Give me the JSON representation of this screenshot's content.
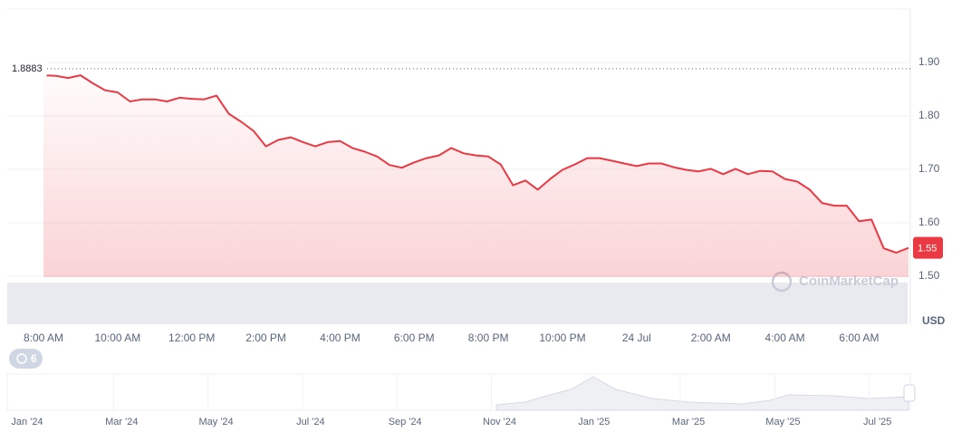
{
  "chart_data": {
    "type": "line",
    "categories": [
      "8:00 AM",
      null,
      null,
      null,
      null,
      null,
      "10:00 AM",
      null,
      null,
      null,
      null,
      null,
      "12:00 PM",
      null,
      null,
      null,
      null,
      null,
      "2:00 PM",
      null,
      null,
      null,
      null,
      null,
      "4:00 PM",
      null,
      null,
      null,
      null,
      null,
      "6:00 PM",
      null,
      null,
      null,
      null,
      null,
      "8:00 PM",
      null,
      null,
      null,
      null,
      null,
      "10:00 PM",
      null,
      null,
      null,
      null,
      null,
      "24 Jul",
      null,
      null,
      null,
      null,
      null,
      "2:00 AM",
      null,
      null,
      null,
      null,
      null,
      "4:00 AM",
      null,
      null,
      null,
      null,
      null,
      "6:00 AM",
      null,
      null,
      null,
      null
    ],
    "values": [
      1.876,
      1.875,
      1.871,
      1.876,
      1.861,
      1.848,
      1.844,
      1.827,
      1.831,
      1.831,
      1.827,
      1.834,
      1.832,
      1.831,
      1.838,
      1.804,
      1.789,
      1.772,
      1.743,
      1.755,
      1.76,
      1.751,
      1.743,
      1.751,
      1.753,
      1.74,
      1.733,
      1.724,
      1.708,
      1.703,
      1.713,
      1.721,
      1.726,
      1.74,
      1.73,
      1.726,
      1.724,
      1.709,
      1.67,
      1.679,
      1.662,
      1.682,
      1.699,
      1.709,
      1.721,
      1.721,
      1.716,
      1.711,
      1.706,
      1.711,
      1.711,
      1.704,
      1.699,
      1.696,
      1.701,
      1.691,
      1.701,
      1.691,
      1.697,
      1.696,
      1.682,
      1.677,
      1.662,
      1.637,
      1.632,
      1.632,
      1.603,
      1.606,
      1.552,
      1.544,
      1.553
    ],
    "color": "#ea3943",
    "ylim": [
      1.41,
      2.0
    ],
    "yticks": [
      {
        "value": 1.5,
        "label": "1.50"
      },
      {
        "value": 1.6,
        "label": "1.60"
      },
      {
        "value": 1.7,
        "label": "1.70"
      },
      {
        "value": 1.8,
        "label": "1.80"
      },
      {
        "value": 1.9,
        "label": "1.90"
      }
    ],
    "grid": true,
    "reference_value": 1.8883,
    "current_price": 1.55,
    "y_unit": "USD",
    "watermark": "CoinMarketCap",
    "badge": 6,
    "navigator_labels": [
      "Jan '24",
      "Mar '24",
      "May '24",
      "Jul '24",
      "Sep '24",
      "Nov '24",
      "Jan '25",
      "Mar '25",
      "May '25",
      "Jul '25"
    ]
  }
}
